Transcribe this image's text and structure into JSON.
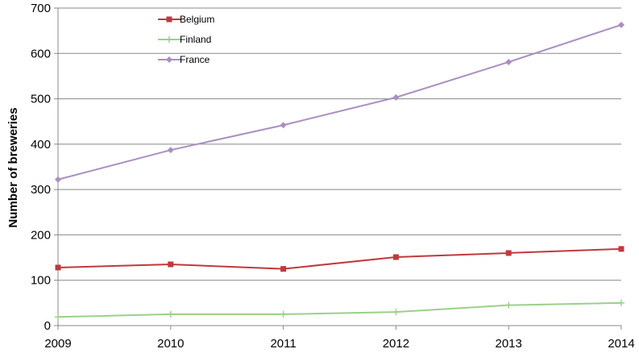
{
  "chart_data": {
    "type": "line",
    "title": "",
    "xlabel": "",
    "ylabel": "Number of breweries",
    "x": [
      2009,
      2010,
      2011,
      2012,
      2013,
      2014
    ],
    "xlim": [
      2009,
      2014
    ],
    "ylim": [
      0,
      700
    ],
    "yticks": [
      0,
      100,
      200,
      300,
      400,
      500,
      600,
      700
    ],
    "grid": "horizontal",
    "legend": "top-left",
    "series": [
      {
        "name": "Belgium",
        "values": [
          128,
          135,
          125,
          151,
          160,
          169
        ],
        "color": "#c0393d",
        "marker": "square"
      },
      {
        "name": "Finland",
        "values": [
          19,
          25,
          25,
          30,
          45,
          50
        ],
        "color": "#9bd08a",
        "marker": "plus"
      },
      {
        "name": "France",
        "values": [
          322,
          387,
          442,
          503,
          581,
          663
        ],
        "color": "#a98fc2",
        "marker": "diamond"
      }
    ]
  }
}
